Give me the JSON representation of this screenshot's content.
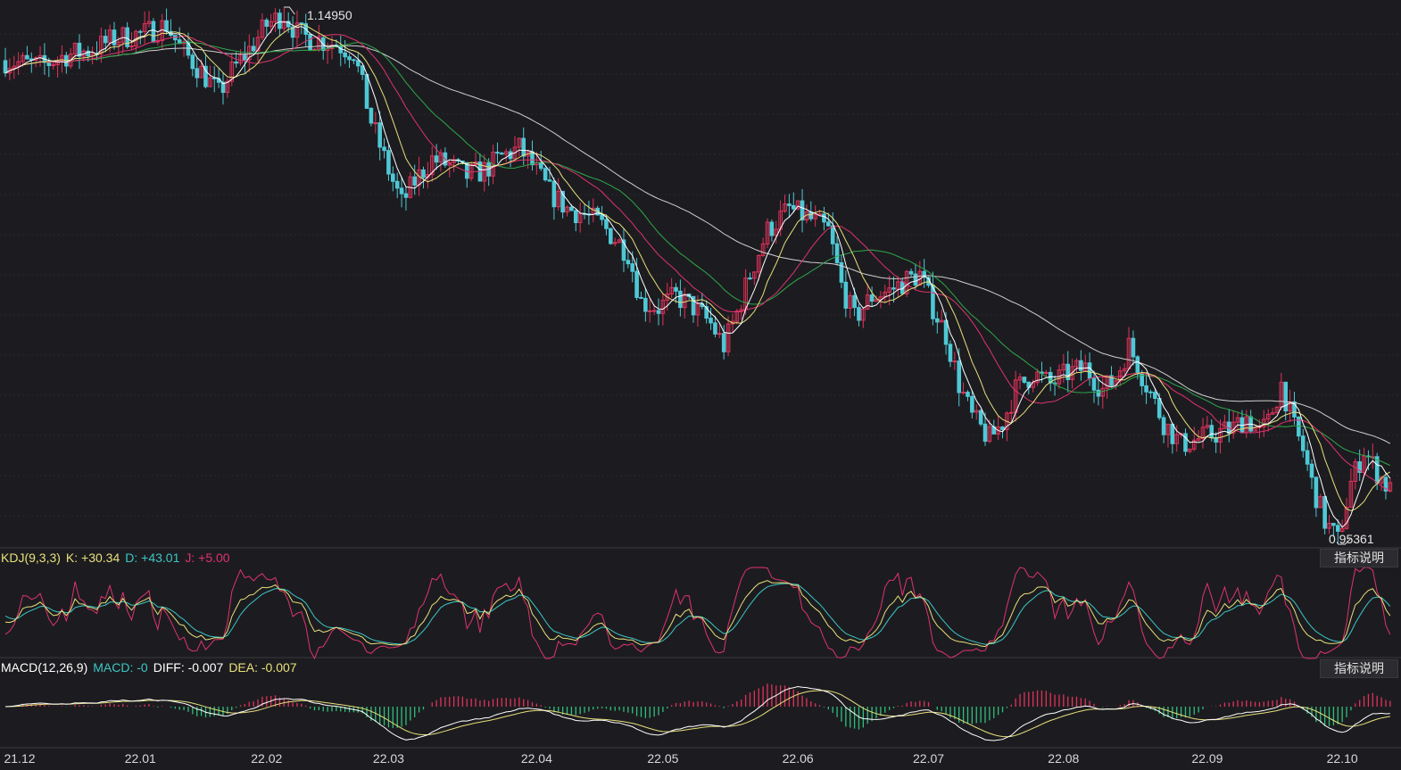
{
  "chart_data": {
    "type": "candlestick",
    "title": "",
    "x_tick_labels": [
      "21.12",
      "22.01",
      "22.02",
      "22.03",
      "22.04",
      "22.05",
      "22.06",
      "22.07",
      "22.08",
      "22.09",
      "22.10"
    ],
    "price_axis_range": [
      0.9536,
      1.1495
    ],
    "annotations": {
      "high_label": "1.14950",
      "low_label": "0.95361"
    },
    "moving_averages": [
      "MA5",
      "MA10",
      "MA20",
      "MA30",
      "MA60"
    ],
    "price_anchors": [
      [
        0,
        1.13
      ],
      [
        8,
        1.128
      ],
      [
        14,
        1.132
      ],
      [
        20,
        1.134
      ],
      [
        25,
        1.138
      ],
      [
        32,
        1.14
      ],
      [
        37,
        1.143
      ],
      [
        40,
        1.135
      ],
      [
        45,
        1.126
      ],
      [
        49,
        1.118
      ],
      [
        52,
        1.126
      ],
      [
        56,
        1.134
      ],
      [
        60,
        1.143
      ],
      [
        64,
        1.147
      ],
      [
        67,
        1.14
      ],
      [
        70,
        1.138
      ],
      [
        76,
        1.136
      ],
      [
        80,
        1.133
      ],
      [
        84,
        1.108
      ],
      [
        88,
        1.09
      ],
      [
        91,
        1.078
      ],
      [
        94,
        1.086
      ],
      [
        98,
        1.094
      ],
      [
        102,
        1.092
      ],
      [
        106,
        1.088
      ],
      [
        110,
        1.09
      ],
      [
        114,
        1.095
      ],
      [
        118,
        1.098
      ],
      [
        121,
        1.092
      ],
      [
        125,
        1.082
      ],
      [
        129,
        1.076
      ],
      [
        133,
        1.074
      ],
      [
        137,
        1.07
      ],
      [
        140,
        1.065
      ],
      [
        143,
        1.06
      ],
      [
        146,
        1.042
      ],
      [
        150,
        1.04
      ],
      [
        154,
        1.044
      ],
      [
        158,
        1.04
      ],
      [
        162,
        1.034
      ],
      [
        165,
        1.026
      ],
      [
        168,
        1.038
      ],
      [
        171,
        1.052
      ],
      [
        175,
        1.068
      ],
      [
        180,
        1.076
      ],
      [
        185,
        1.072
      ],
      [
        189,
        1.068
      ],
      [
        192,
        1.048
      ],
      [
        195,
        1.036
      ],
      [
        199,
        1.044
      ],
      [
        203,
        1.046
      ],
      [
        207,
        1.05
      ],
      [
        210,
        1.052
      ],
      [
        213,
        1.04
      ],
      [
        216,
        1.03
      ],
      [
        219,
        1.012
      ],
      [
        222,
        1.0
      ],
      [
        226,
        0.992
      ],
      [
        229,
        0.998
      ],
      [
        232,
        1.01
      ],
      [
        236,
        1.016
      ],
      [
        240,
        1.012
      ],
      [
        244,
        1.016
      ],
      [
        248,
        1.018
      ],
      [
        252,
        1.01
      ],
      [
        255,
        1.014
      ],
      [
        258,
        1.026
      ],
      [
        262,
        1.012
      ],
      [
        266,
        0.998
      ],
      [
        270,
        0.99
      ],
      [
        274,
        0.992
      ],
      [
        278,
        0.994
      ],
      [
        282,
        0.996
      ],
      [
        285,
        1.0
      ],
      [
        288,
        0.994
      ],
      [
        290,
        0.998
      ],
      [
        293,
        1.012
      ],
      [
        296,
        0.996
      ],
      [
        298,
        0.988
      ],
      [
        300,
        0.976
      ],
      [
        303,
        0.962
      ],
      [
        306,
        0.955
      ],
      [
        309,
        0.976
      ],
      [
        312,
        0.988
      ],
      [
        315,
        0.98
      ],
      [
        318,
        0.973
      ]
    ],
    "kdj": {
      "params": "KDJ(9,3,3)",
      "K": "+30.34",
      "D": "+43.01",
      "J": "+5.00"
    },
    "macd": {
      "params": "MACD(12,26,9)",
      "MACD": "-0",
      "DIFF": "-0.007",
      "DEA": "-0.007"
    }
  },
  "ui": {
    "kdj_label_title": "KDJ(9,3,3)",
    "kdj_label_k": "K: +30.34",
    "kdj_label_d": "D: +43.01",
    "kdj_label_j": "J: +5.00",
    "macd_label_title": "MACD(12,26,9)",
    "macd_label_macd": "MACD: -0",
    "macd_label_diff": "DIFF: -0.007",
    "macd_label_dea": "DEA: -0.007",
    "help_button": "指标说明",
    "high_text": "1.14950",
    "low_text": "0.95361"
  },
  "colors": {
    "background": "#1c1c20",
    "grid": "#2a2a2e",
    "separator": "#3a3a3e",
    "up": "#e0325a",
    "down": "#4fc8d6",
    "ma5": "#ffffff",
    "ma10": "#e8e07a",
    "ma20": "#e0326e",
    "ma30": "#2ea84a",
    "ma60": "#d0d0d0",
    "k": "#e8e07a",
    "d": "#3cc6c4",
    "j": "#e0326e",
    "diff": "#ffffff",
    "dea": "#e8e07a"
  }
}
